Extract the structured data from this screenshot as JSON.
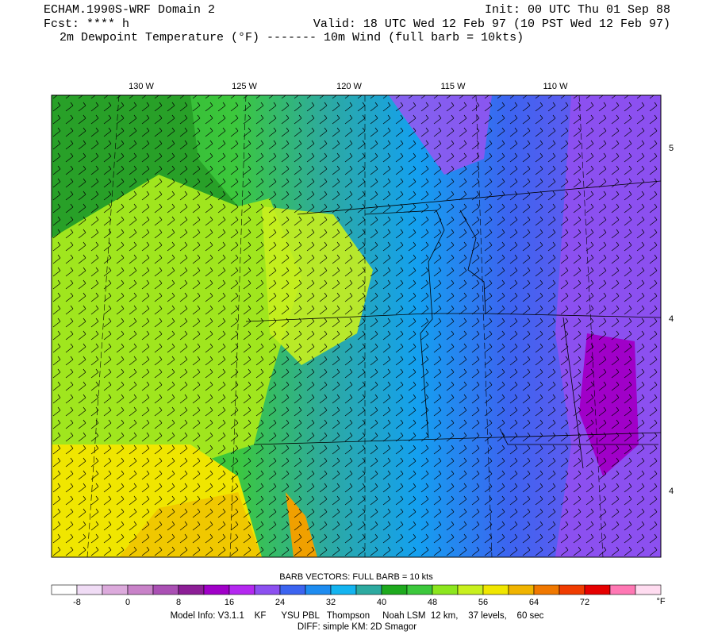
{
  "header": {
    "title": "ECHAM.1990S-WRF Domain 2",
    "init": "Init: 00 UTC Thu 01 Sep 88",
    "fcst": "Fcst: **** h",
    "valid": "Valid: 18 UTC Wed 12 Feb 97 (10 PST Wed 12 Feb 97)",
    "fields": "2m Dewpoint Temperature (°F) ------- 10m Wind (full barb = 10kts)"
  },
  "map": {
    "lon_labels": [
      "130 W",
      "125 W",
      "120 W",
      "115 W",
      "110 W"
    ],
    "lat_labels": [
      "5",
      "4",
      "4"
    ]
  },
  "colorbar": {
    "title": "BARB VECTORS:  FULL BARB = 10 kts",
    "labels": [
      "-8",
      "0",
      "8",
      "16",
      "24",
      "32",
      "40",
      "48",
      "56",
      "64",
      "72"
    ],
    "unit": "°F"
  },
  "footer": {
    "line1": "Model Info: V3.1.1    KF      YSU PBL   Thompson     Noah LSM  12 km,    37 levels,    60 sec",
    "line2": "DIFF: simple KM: 2D Smagor"
  }
}
